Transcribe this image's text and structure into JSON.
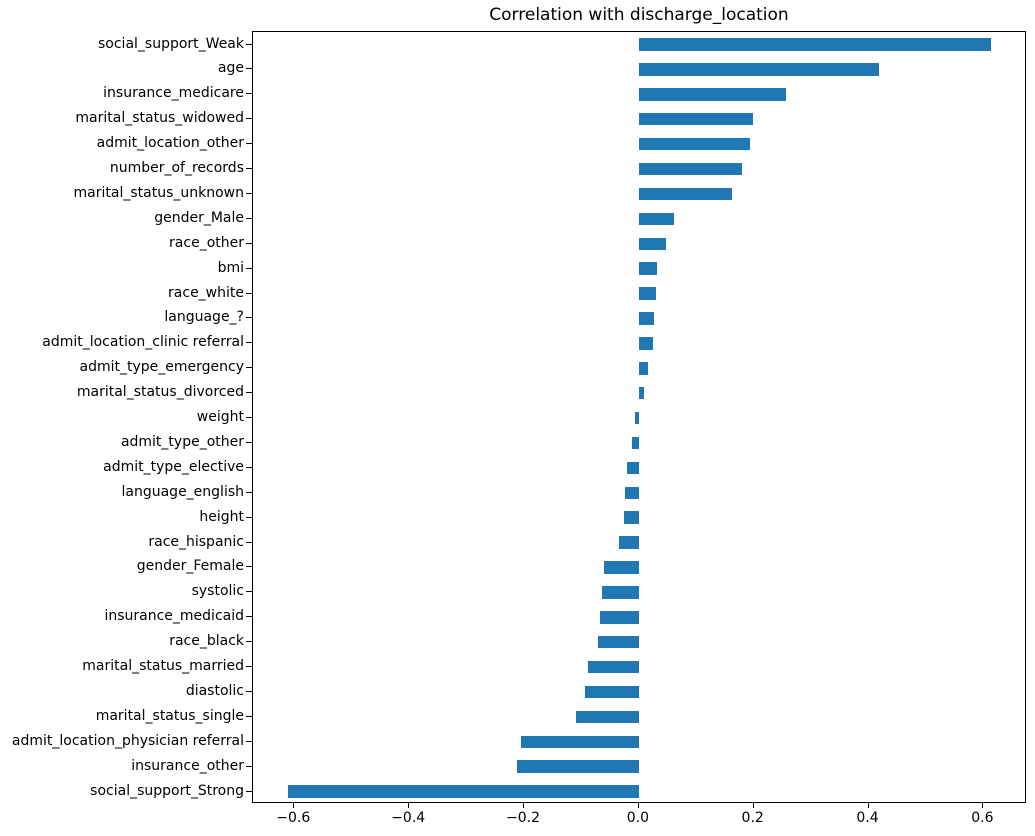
{
  "chart_data": {
    "type": "bar",
    "orientation": "horizontal",
    "title": "Correlation with discharge_location",
    "categories": [
      "social_support_Weak",
      "age",
      "insurance_medicare",
      "marital_status_widowed",
      "admit_location_other",
      "number_of_records",
      "marital_status_unknown",
      "gender_Male",
      "race_other",
      "bmi",
      "race_white",
      "language_?",
      "admit_location_clinic referral",
      "admit_type_emergency",
      "marital_status_divorced",
      "weight",
      "admit_type_other",
      "admit_type_elective",
      "language_english",
      "height",
      "race_hispanic",
      "gender_Female",
      "systolic",
      "insurance_medicaid",
      "race_black",
      "marital_status_married",
      "diastolic",
      "marital_status_single",
      "admit_location_physician referral",
      "insurance_other",
      "social_support_Strong"
    ],
    "values": [
      0.614,
      0.419,
      0.257,
      0.198,
      0.194,
      0.18,
      0.162,
      0.061,
      0.048,
      0.031,
      0.03,
      0.026,
      0.025,
      0.016,
      0.009,
      -0.006,
      -0.012,
      -0.02,
      -0.024,
      -0.026,
      -0.034,
      -0.061,
      -0.065,
      -0.068,
      -0.071,
      -0.088,
      -0.094,
      -0.11,
      -0.206,
      -0.213,
      -0.611
    ],
    "bar_color": "#1f77b4",
    "xlabel": "",
    "ylabel": "",
    "xlim": [
      -0.672,
      0.676
    ],
    "x_ticks": [
      -0.6,
      -0.4,
      -0.2,
      0.0,
      0.2,
      0.4,
      0.6
    ],
    "x_tick_labels": [
      "−0.6",
      "−0.4",
      "−0.2",
      "0.0",
      "0.2",
      "0.4",
      "0.6"
    ],
    "grid": false,
    "legend": false
  }
}
